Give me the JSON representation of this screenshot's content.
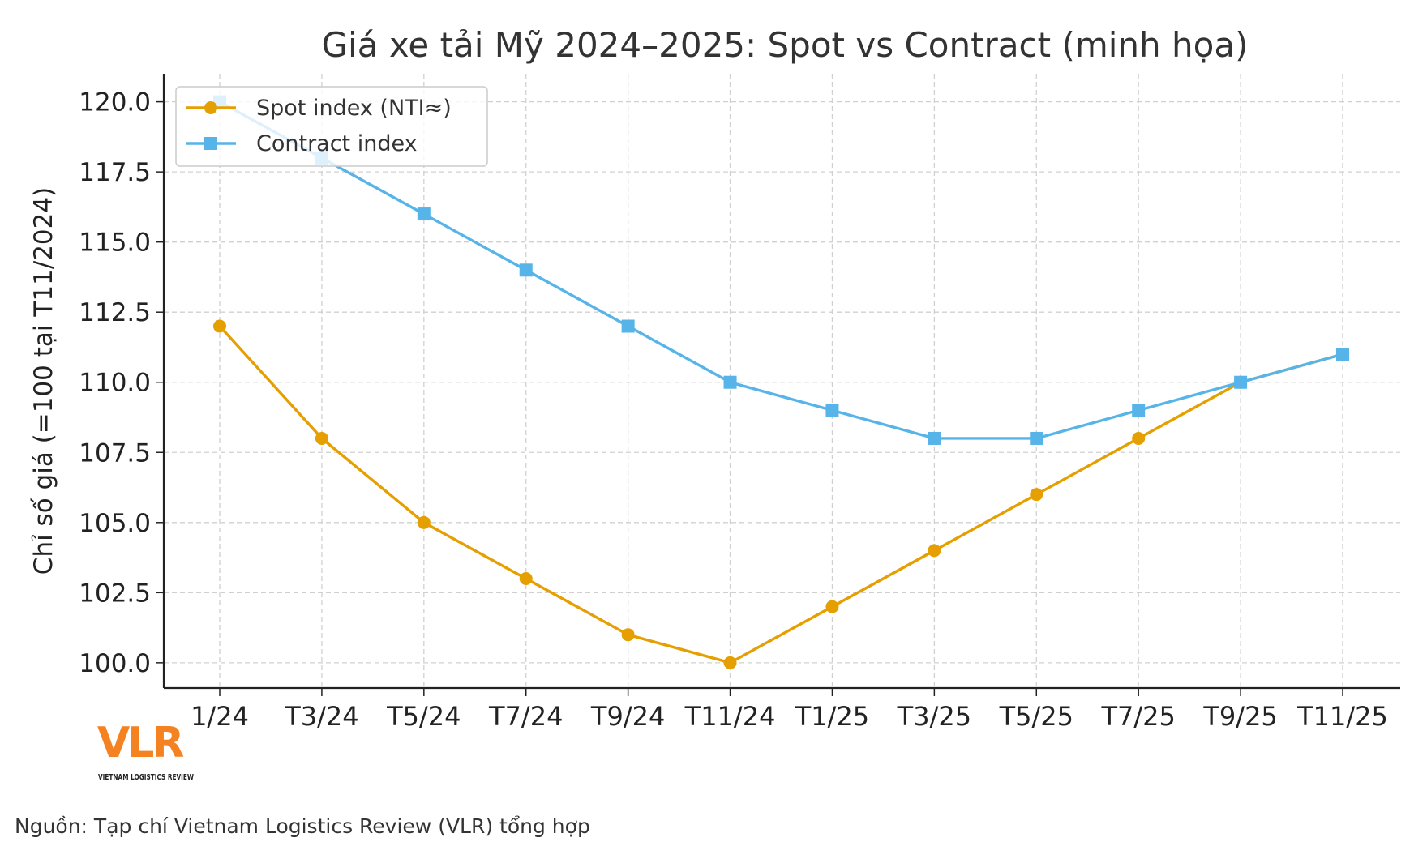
{
  "chart_data": {
    "type": "line",
    "title": "Giá xe tải Mỹ 2024–2025: Spot vs Contract (minh họa)",
    "xlabel": "",
    "ylabel": "Chỉ số giá (=100 tại T11/2024)",
    "categories": [
      "1/24",
      "T3/24",
      "T5/24",
      "T7/24",
      "T9/24",
      "T11/24",
      "T1/25",
      "T3/25",
      "T5/25",
      "T7/25",
      "T9/25",
      "T11/25"
    ],
    "series": [
      {
        "name": "Spot index (NTI≈)",
        "marker": "circle",
        "color": "#E69F00",
        "values": [
          112,
          108,
          105,
          103,
          101,
          100,
          102,
          104,
          106,
          108,
          110,
          111
        ]
      },
      {
        "name": "Contract index",
        "marker": "square",
        "color": "#56B4E9",
        "values": [
          120,
          118,
          116,
          114,
          112,
          110,
          109,
          108,
          108,
          109,
          110,
          111
        ]
      }
    ],
    "yticks": [
      "100.0",
      "102.5",
      "105.0",
      "107.5",
      "110.0",
      "112.5",
      "115.0",
      "117.5",
      "120.0"
    ],
    "ylim": [
      99.1,
      121
    ],
    "grid": true,
    "legend_position": "top-left"
  },
  "logo": {
    "text": "VLR",
    "subtitle": "VIETNAM LOGISTICS REVIEW",
    "color": "#F58220"
  },
  "source": "Nguồn: Tạp chí Vietnam Logistics Review (VLR) tổng hợp"
}
